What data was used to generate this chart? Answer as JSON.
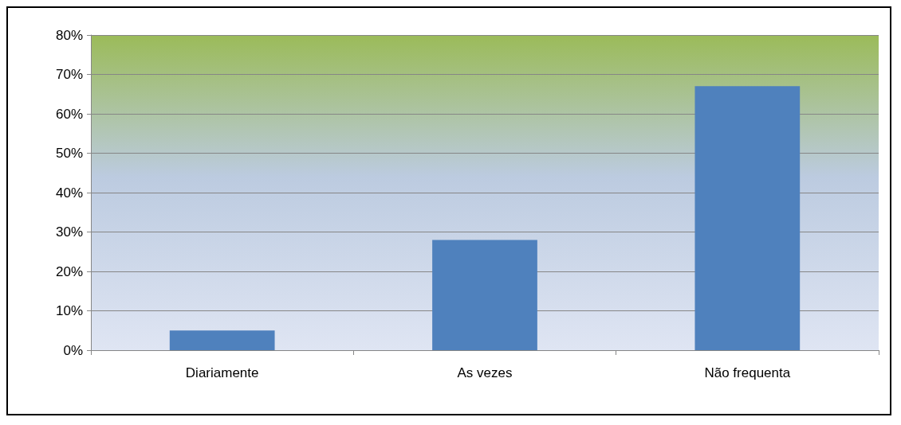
{
  "chart_data": {
    "type": "bar",
    "categories": [
      "Diariamente",
      "As vezes",
      "Não frequenta"
    ],
    "values": [
      5,
      28,
      67
    ],
    "color": "#4f81bd",
    "ylim": [
      0,
      80
    ],
    "yticks": [
      {
        "value": 0,
        "label": "0%"
      },
      {
        "value": 10,
        "label": "10%"
      },
      {
        "value": 20,
        "label": "20%"
      },
      {
        "value": 30,
        "label": "30%"
      },
      {
        "value": 40,
        "label": "40%"
      },
      {
        "value": 50,
        "label": "50%"
      },
      {
        "value": 60,
        "label": "60%"
      },
      {
        "value": 70,
        "label": "70%"
      },
      {
        "value": 80,
        "label": "80%"
      }
    ],
    "grid": "y"
  }
}
